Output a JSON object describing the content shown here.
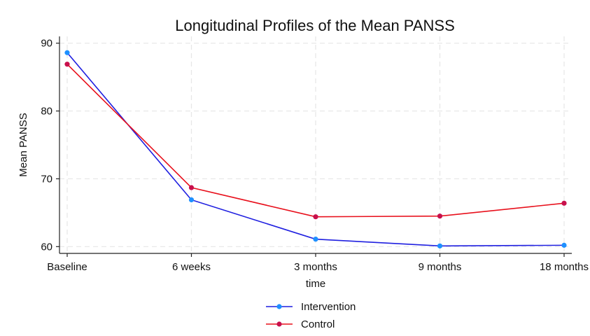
{
  "chart_data": {
    "type": "line",
    "title": "Longitudinal Profiles of the Mean PANSS",
    "xlabel": "time",
    "ylabel": "Mean PANSS",
    "categories": [
      "Baseline",
      "6 weeks",
      "3 months",
      "9 months",
      "18 months"
    ],
    "ylim": [
      59,
      91
    ],
    "yticks": [
      60,
      70,
      80,
      90
    ],
    "grid": true,
    "legend_position": "bottom",
    "series": [
      {
        "name": "Intervention",
        "color": "#1f1fe0",
        "marker_color": "#1e90ff",
        "values": [
          88.6,
          66.9,
          61.1,
          60.1,
          60.2
        ]
      },
      {
        "name": "Control",
        "color": "#e8101c",
        "marker_color": "#c8104c",
        "values": [
          86.9,
          68.7,
          64.4,
          64.5,
          66.4
        ]
      }
    ]
  }
}
